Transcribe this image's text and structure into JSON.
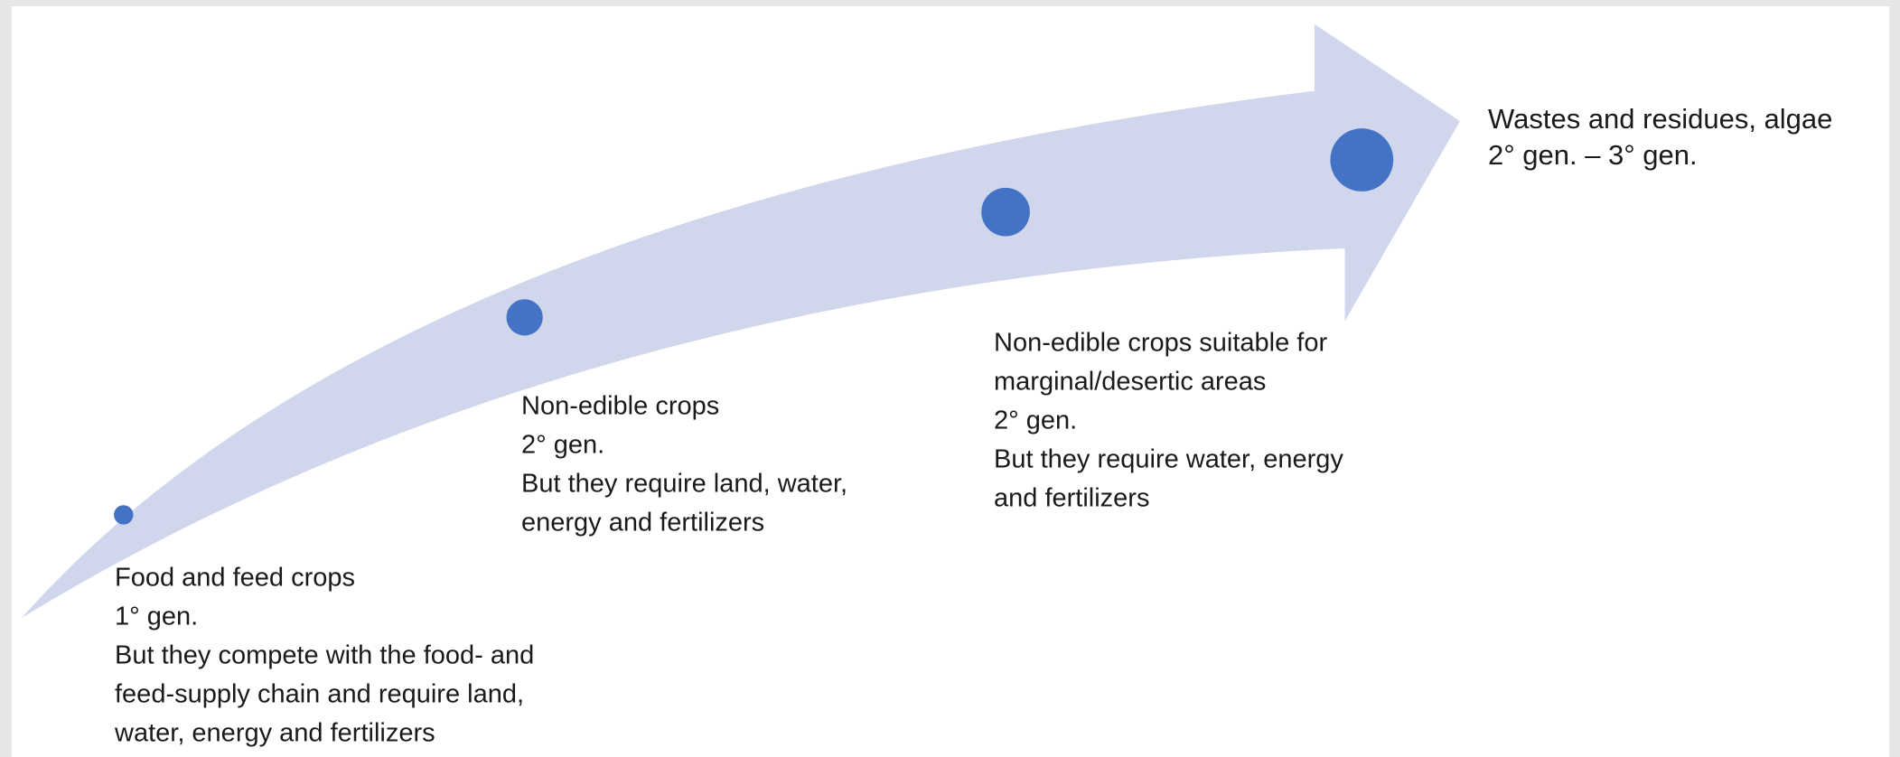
{
  "stages": [
    {
      "lines": [
        "Food and feed crops",
        "1° gen.",
        "But they compete with the food- and",
        "feed-supply chain and require land,",
        "water, energy and fertilizers"
      ]
    },
    {
      "lines": [
        "Non-edible crops",
        "2° gen.",
        "But they require land, water,",
        "energy and fertilizers"
      ]
    },
    {
      "lines": [
        "Non-edible  crops suitable for",
        "marginal/desertic areas",
        "2° gen.",
        "But they require water, energy",
        "and fertilizers"
      ]
    },
    {
      "lines": [
        "Wastes and residues, algae",
        "2° gen. – 3° gen."
      ]
    }
  ]
}
